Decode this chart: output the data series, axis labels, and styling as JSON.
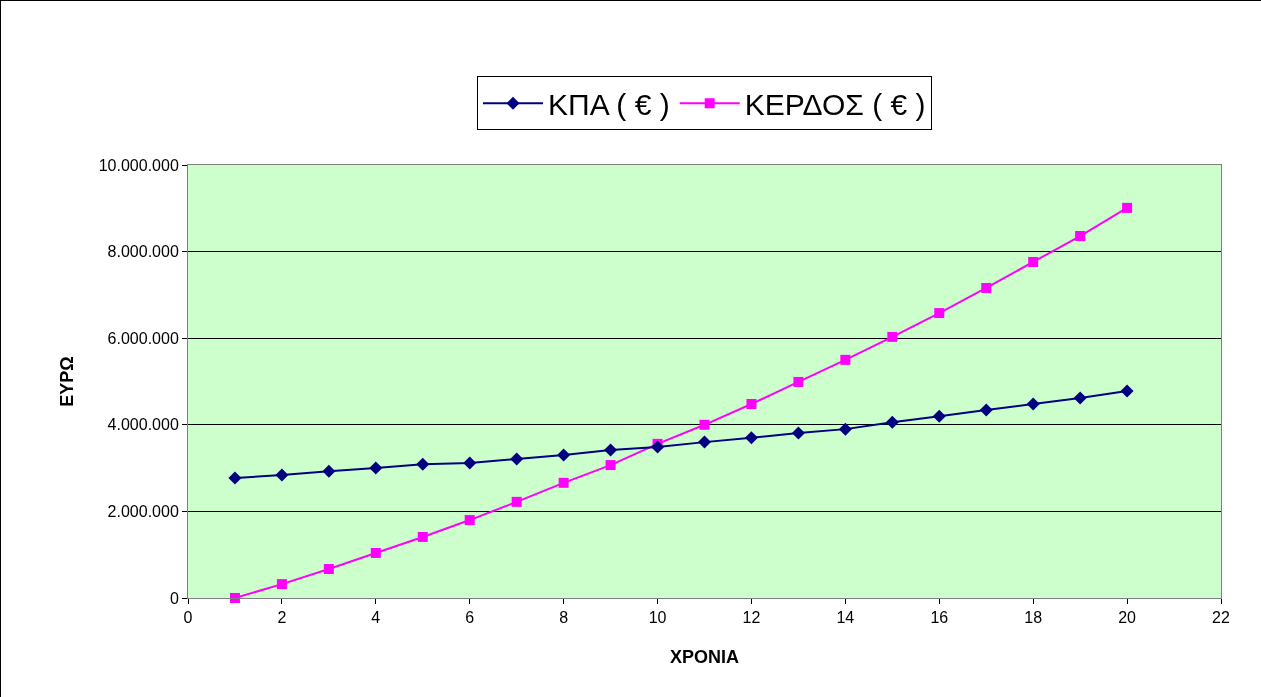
{
  "chart_data": {
    "type": "line",
    "xlabel": "ΧΡΟΝΙΑ",
    "ylabel": "ΕΥΡΩ",
    "x": [
      1,
      2,
      3,
      4,
      5,
      6,
      7,
      8,
      9,
      10,
      11,
      12,
      13,
      14,
      15,
      16,
      17,
      18,
      19,
      20
    ],
    "series": [
      {
        "name": "ΚΠΑ ( € )",
        "color": "#000080",
        "marker": "diamond",
        "values": [
          2770000,
          2840000,
          2930000,
          3000000,
          3090000,
          3120000,
          3210000,
          3300000,
          3420000,
          3490000,
          3600000,
          3700000,
          3810000,
          3900000,
          4060000,
          4200000,
          4340000,
          4480000,
          4620000,
          4780000
        ]
      },
      {
        "name": "ΚΕΡΔΟΣ ( € )",
        "color": "#ff00ff",
        "marker": "square",
        "values": [
          0,
          320000,
          670000,
          1040000,
          1410000,
          1800000,
          2220000,
          2660000,
          3070000,
          3560000,
          4000000,
          4480000,
          4990000,
          5500000,
          6030000,
          6580000,
          7160000,
          7760000,
          8360000,
          9010000
        ]
      }
    ],
    "xlim": [
      0,
      22
    ],
    "xticks": [
      0,
      2,
      4,
      6,
      8,
      10,
      12,
      14,
      16,
      18,
      20,
      22
    ],
    "ylim": [
      0,
      10000000
    ],
    "yticks": [
      0,
      {
        "value": 2000000,
        "label": "2.000.000"
      },
      {
        "value": 4000000,
        "label": "4.000.000"
      },
      {
        "value": 6000000,
        "label": "6.000.000"
      },
      {
        "value": 8000000,
        "label": "8.000.000"
      },
      {
        "value": 10000000,
        "label": "10.000.000"
      }
    ],
    "grid": "y",
    "legend": "top",
    "line_style": "solid"
  }
}
